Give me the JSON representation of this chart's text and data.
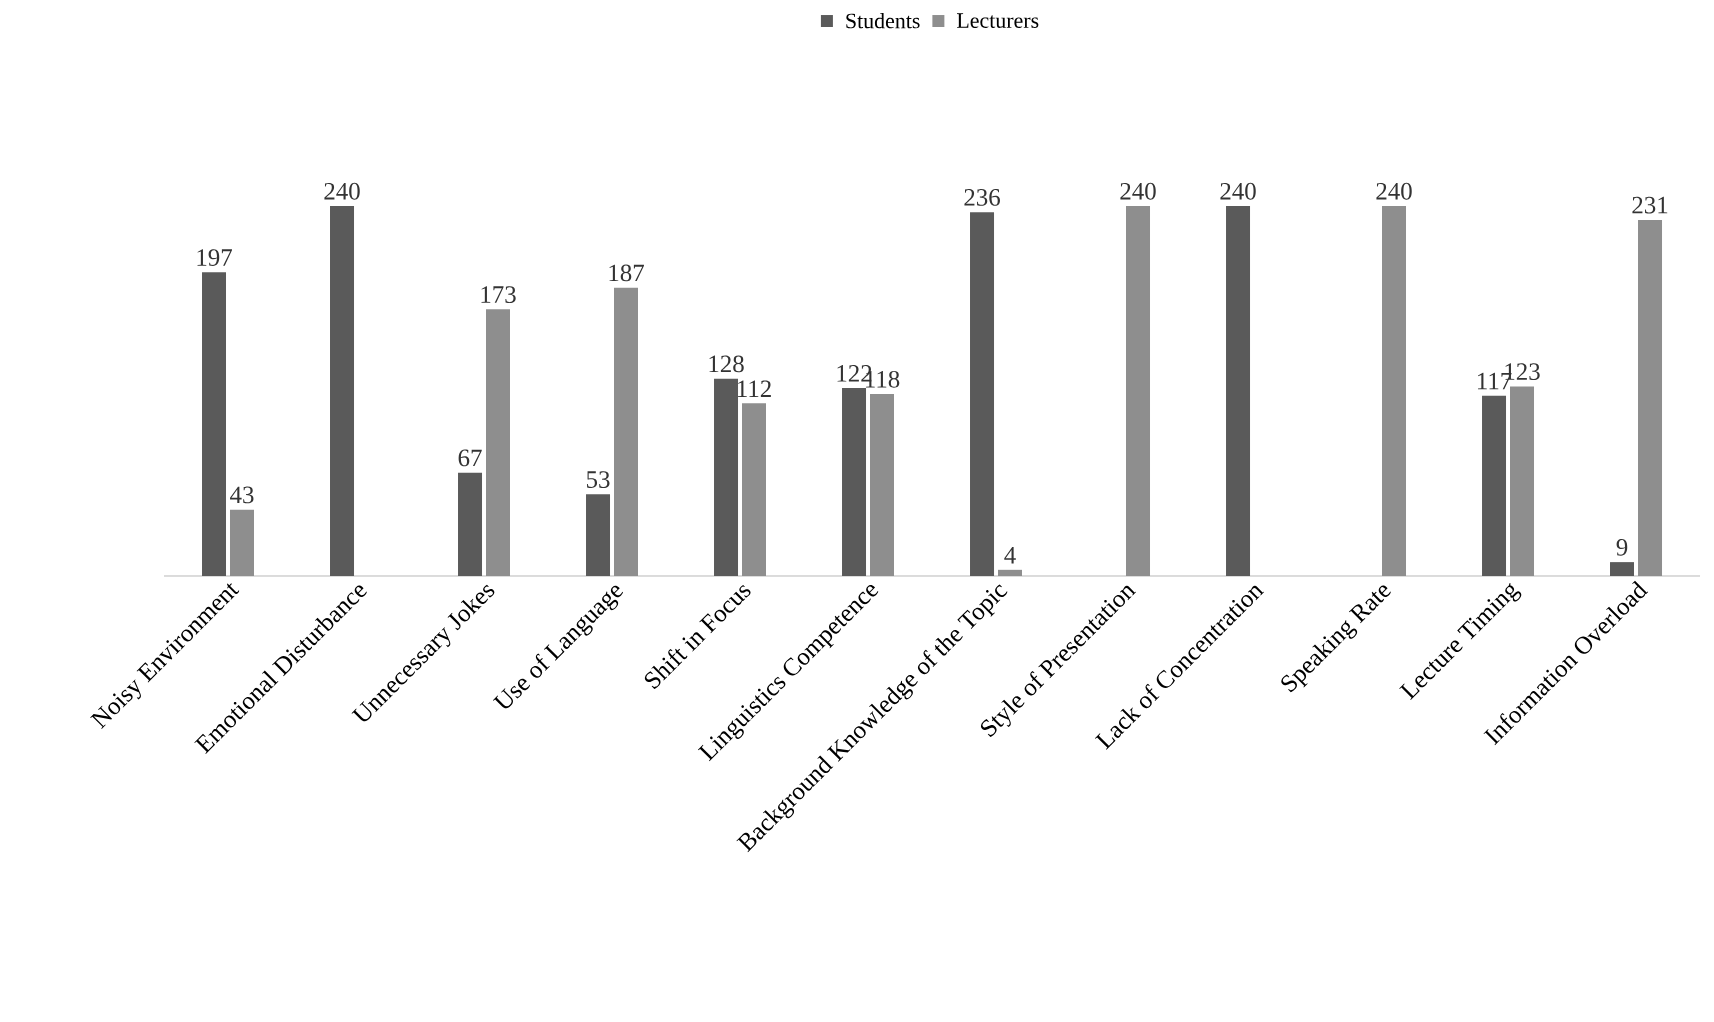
{
  "chart_data": {
    "type": "bar",
    "categories": [
      "Noisy Environment",
      "Emotional Disturbance",
      "Unnecessary Jokes",
      "Use of Language",
      "Shift in Focus",
      "Linguistics Competence",
      "Background Knowledge of the Topic",
      "Style of Presentation",
      "Lack of Concentration",
      "Speaking Rate",
      "Lecture Timing",
      "Information Overload"
    ],
    "series": [
      {
        "name": "Students",
        "color": "#5a5a5a",
        "values": [
          197,
          240,
          67,
          53,
          128,
          122,
          236,
          null,
          240,
          null,
          117,
          9
        ]
      },
      {
        "name": "Lecturers",
        "color": "#8e8e8e",
        "values": [
          43,
          null,
          173,
          187,
          112,
          118,
          4,
          240,
          null,
          240,
          123,
          231
        ]
      }
    ],
    "ylim": [
      0,
      240
    ],
    "data_labels": true,
    "legend": "top"
  }
}
